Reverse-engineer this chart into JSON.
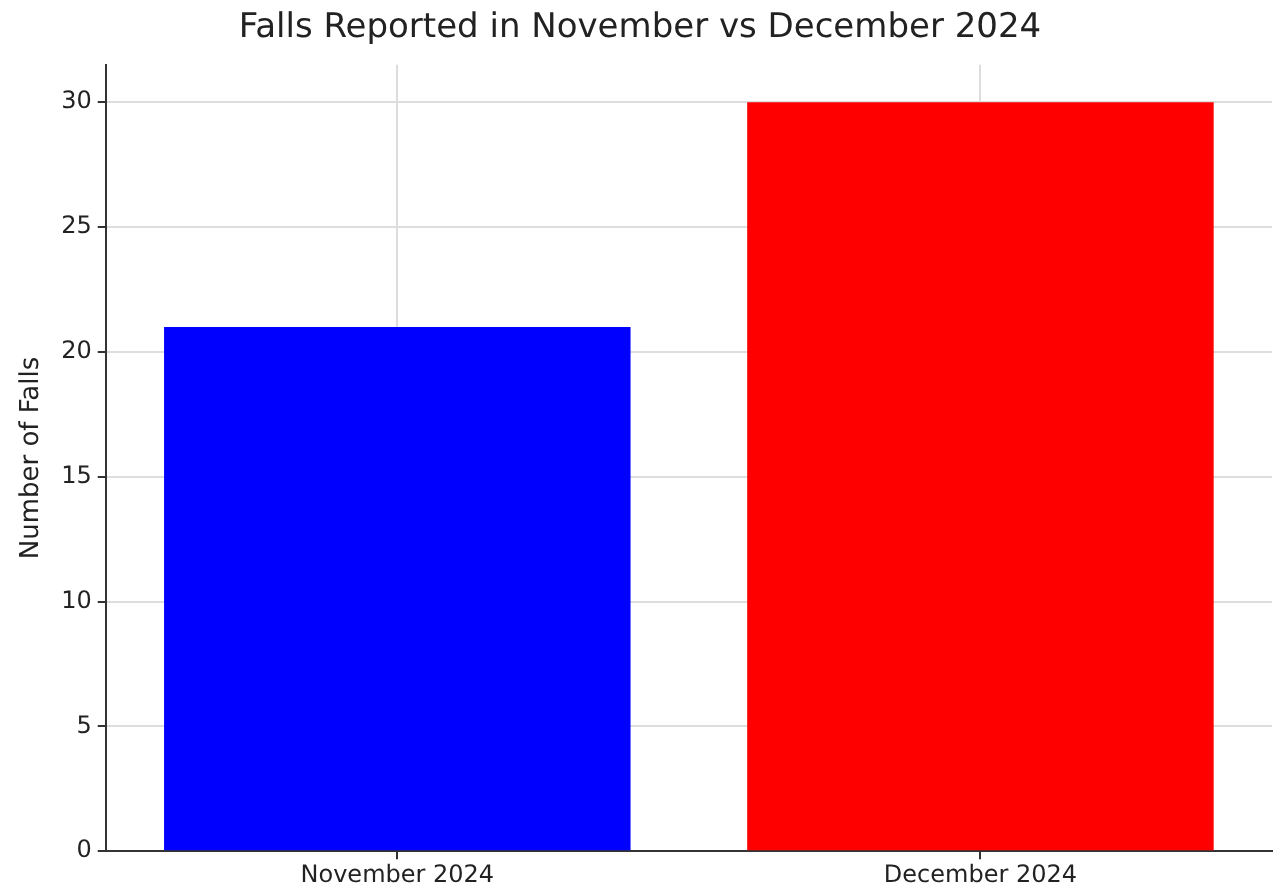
{
  "chart_data": {
    "type": "bar",
    "title": "Falls Reported in November vs December 2024",
    "categories": [
      "November 2024",
      "December 2024"
    ],
    "values": [
      21,
      30
    ],
    "colors": [
      "#0000ff",
      "#ff0000"
    ],
    "ylabel": "Number of Falls",
    "ylim": [
      0,
      31.5
    ],
    "yticks": [
      0,
      5,
      10,
      15,
      20,
      25,
      30
    ],
    "grid": true
  }
}
